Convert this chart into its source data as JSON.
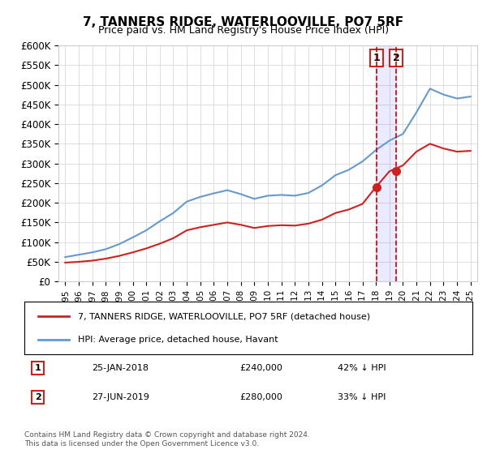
{
  "title": "7, TANNERS RIDGE, WATERLOOVILLE, PO7 5RF",
  "subtitle": "Price paid vs. HM Land Registry's House Price Index (HPI)",
  "ylabel": "",
  "ylim": [
    0,
    600000
  ],
  "yticks": [
    0,
    50000,
    100000,
    150000,
    200000,
    250000,
    300000,
    350000,
    400000,
    450000,
    500000,
    550000,
    600000
  ],
  "ytick_labels": [
    "£0",
    "£50K",
    "£100K",
    "£150K",
    "£200K",
    "£250K",
    "£300K",
    "£350K",
    "£400K",
    "£450K",
    "£500K",
    "£550K",
    "£600K"
  ],
  "hpi_color": "#6699cc",
  "price_color": "#cc2222",
  "vline1_color": "#cc0000",
  "vline2_color": "#cc0000",
  "legend_box_color": "#cc2222",
  "transaction1": {
    "date": "25-JAN-2018",
    "price": 240000,
    "hpi_pct": "42% ↓ HPI",
    "x": 2018.07
  },
  "transaction2": {
    "date": "27-JUN-2019",
    "price": 280000,
    "hpi_pct": "33% ↓ HPI",
    "x": 2019.49
  },
  "note": "Contains HM Land Registry data © Crown copyright and database right 2024.\nThis data is licensed under the Open Government Licence v3.0.",
  "hpi_years": [
    1995,
    1996,
    1997,
    1998,
    1999,
    2000,
    2001,
    2002,
    2003,
    2004,
    2005,
    2006,
    2007,
    2008,
    2009,
    2010,
    2011,
    2012,
    2013,
    2014,
    2015,
    2016,
    2017,
    2018,
    2019,
    2020,
    2021,
    2022,
    2023,
    2024,
    2025
  ],
  "hpi_values": [
    62000,
    68000,
    74000,
    82000,
    95000,
    112000,
    130000,
    153000,
    174000,
    203000,
    215000,
    224000,
    232000,
    222000,
    210000,
    218000,
    220000,
    218000,
    225000,
    244000,
    270000,
    284000,
    305000,
    334000,
    358000,
    375000,
    430000,
    490000,
    475000,
    465000,
    470000
  ],
  "price_years": [
    1995,
    1996,
    1997,
    1998,
    1999,
    2000,
    2001,
    2002,
    2003,
    2004,
    2005,
    2006,
    2007,
    2008,
    2009,
    2010,
    2011,
    2012,
    2013,
    2014,
    2015,
    2016,
    2017,
    2018,
    2019,
    2020,
    2021,
    2022,
    2023,
    2024,
    2025
  ],
  "price_values": [
    48000,
    50000,
    53000,
    58000,
    65000,
    74000,
    84000,
    96000,
    110000,
    130000,
    138000,
    144000,
    150000,
    144000,
    136000,
    141000,
    143000,
    142000,
    147000,
    157000,
    174000,
    183000,
    197000,
    240000,
    280000,
    295000,
    330000,
    350000,
    338000,
    330000,
    332000
  ],
  "legend_label_price": "7, TANNERS RIDGE, WATERLOOVILLE, PO7 5RF (detached house)",
  "legend_label_hpi": "HPI: Average price, detached house, Havant"
}
